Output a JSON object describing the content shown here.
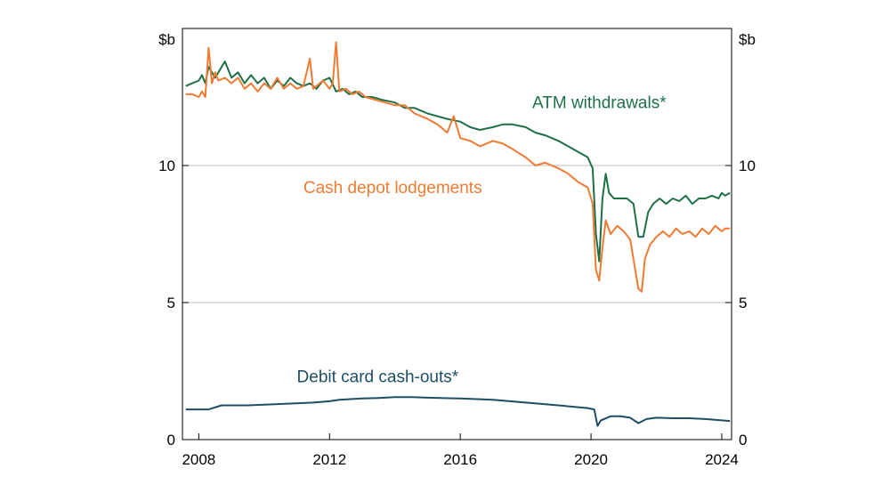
{
  "chart_data": {
    "type": "line",
    "title": "",
    "xlabel": "",
    "ylabel": "",
    "y_unit_left": "$b",
    "y_unit_right": "$b",
    "xlim": [
      2007.5,
      2024.3
    ],
    "ylim": [
      0,
      15
    ],
    "x_ticks": [
      2008,
      2012,
      2016,
      2020,
      2024
    ],
    "x_tick_labels": [
      "2008",
      "2012",
      "2016",
      "2020",
      "2024"
    ],
    "y_ticks": [
      0,
      5,
      10
    ],
    "y_tick_labels": [
      "0",
      "5",
      "10"
    ],
    "grid": "horizontal",
    "series": [
      {
        "name": "ATM withdrawals*",
        "color": "#1e7047",
        "points": [
          [
            2007.6,
            12.9
          ],
          [
            2007.8,
            13.0
          ],
          [
            2008.0,
            13.1
          ],
          [
            2008.1,
            13.3
          ],
          [
            2008.2,
            13.0
          ],
          [
            2008.3,
            13.6
          ],
          [
            2008.5,
            13.2
          ],
          [
            2008.6,
            13.4
          ],
          [
            2008.8,
            13.8
          ],
          [
            2009.0,
            13.2
          ],
          [
            2009.2,
            13.4
          ],
          [
            2009.4,
            13.0
          ],
          [
            2009.6,
            13.3
          ],
          [
            2009.8,
            13.0
          ],
          [
            2010.0,
            13.2
          ],
          [
            2010.2,
            12.8
          ],
          [
            2010.4,
            13.1
          ],
          [
            2010.6,
            12.9
          ],
          [
            2010.8,
            13.2
          ],
          [
            2011.0,
            13.0
          ],
          [
            2011.2,
            12.9
          ],
          [
            2011.4,
            13.0
          ],
          [
            2011.6,
            12.8
          ],
          [
            2011.8,
            13.1
          ],
          [
            2012.0,
            13.2
          ],
          [
            2012.2,
            12.7
          ],
          [
            2012.4,
            12.8
          ],
          [
            2012.6,
            12.6
          ],
          [
            2012.8,
            12.7
          ],
          [
            2013.0,
            12.5
          ],
          [
            2013.3,
            12.5
          ],
          [
            2013.6,
            12.4
          ],
          [
            2014.0,
            12.3
          ],
          [
            2014.3,
            12.1
          ],
          [
            2014.6,
            12.1
          ],
          [
            2015.0,
            11.9
          ],
          [
            2015.3,
            11.8
          ],
          [
            2015.6,
            11.7
          ],
          [
            2016.0,
            11.6
          ],
          [
            2016.3,
            11.4
          ],
          [
            2016.6,
            11.3
          ],
          [
            2017.0,
            11.4
          ],
          [
            2017.3,
            11.5
          ],
          [
            2017.6,
            11.5
          ],
          [
            2018.0,
            11.4
          ],
          [
            2018.3,
            11.2
          ],
          [
            2018.6,
            11.1
          ],
          [
            2019.0,
            10.9
          ],
          [
            2019.3,
            10.7
          ],
          [
            2019.6,
            10.5
          ],
          [
            2019.9,
            10.3
          ],
          [
            2020.05,
            9.9
          ],
          [
            2020.15,
            7.5
          ],
          [
            2020.25,
            6.5
          ],
          [
            2020.35,
            8.8
          ],
          [
            2020.45,
            9.7
          ],
          [
            2020.55,
            9.0
          ],
          [
            2020.7,
            8.8
          ],
          [
            2020.9,
            8.8
          ],
          [
            2021.1,
            8.8
          ],
          [
            2021.3,
            8.6
          ],
          [
            2021.45,
            7.4
          ],
          [
            2021.6,
            7.4
          ],
          [
            2021.75,
            8.3
          ],
          [
            2021.9,
            8.6
          ],
          [
            2022.1,
            8.8
          ],
          [
            2022.3,
            8.6
          ],
          [
            2022.5,
            8.8
          ],
          [
            2022.7,
            8.7
          ],
          [
            2022.9,
            8.9
          ],
          [
            2023.1,
            8.6
          ],
          [
            2023.3,
            8.8
          ],
          [
            2023.5,
            8.8
          ],
          [
            2023.7,
            8.9
          ],
          [
            2023.9,
            8.8
          ],
          [
            2024.0,
            9.0
          ],
          [
            2024.1,
            8.9
          ],
          [
            2024.25,
            9.0
          ]
        ],
        "label_pos": [
          2018.2,
          12.1
        ]
      },
      {
        "name": "Cash depot lodgements",
        "color": "#f07b32",
        "points": [
          [
            2007.6,
            12.6
          ],
          [
            2007.8,
            12.6
          ],
          [
            2008.0,
            12.5
          ],
          [
            2008.1,
            12.7
          ],
          [
            2008.2,
            12.5
          ],
          [
            2008.3,
            14.3
          ],
          [
            2008.4,
            13.0
          ],
          [
            2008.5,
            13.4
          ],
          [
            2008.6,
            13.1
          ],
          [
            2008.8,
            13.2
          ],
          [
            2009.0,
            13.0
          ],
          [
            2009.2,
            13.2
          ],
          [
            2009.4,
            12.8
          ],
          [
            2009.6,
            13.0
          ],
          [
            2009.8,
            12.7
          ],
          [
            2010.0,
            13.0
          ],
          [
            2010.2,
            12.8
          ],
          [
            2010.4,
            13.2
          ],
          [
            2010.6,
            12.8
          ],
          [
            2010.8,
            13.0
          ],
          [
            2011.0,
            12.8
          ],
          [
            2011.2,
            12.9
          ],
          [
            2011.4,
            13.9
          ],
          [
            2011.5,
            12.8
          ],
          [
            2011.6,
            12.9
          ],
          [
            2011.8,
            13.1
          ],
          [
            2012.0,
            12.8
          ],
          [
            2012.1,
            13.0
          ],
          [
            2012.2,
            14.5
          ],
          [
            2012.3,
            12.7
          ],
          [
            2012.5,
            12.8
          ],
          [
            2012.7,
            12.6
          ],
          [
            2012.9,
            12.7
          ],
          [
            2013.1,
            12.5
          ],
          [
            2013.4,
            12.4
          ],
          [
            2013.7,
            12.3
          ],
          [
            2014.0,
            12.2
          ],
          [
            2014.3,
            12.2
          ],
          [
            2014.6,
            11.9
          ],
          [
            2015.0,
            11.7
          ],
          [
            2015.3,
            11.5
          ],
          [
            2015.6,
            11.2
          ],
          [
            2015.8,
            11.8
          ],
          [
            2016.0,
            11.0
          ],
          [
            2016.3,
            10.9
          ],
          [
            2016.6,
            10.7
          ],
          [
            2017.0,
            10.9
          ],
          [
            2017.3,
            10.8
          ],
          [
            2017.6,
            10.6
          ],
          [
            2018.0,
            10.3
          ],
          [
            2018.3,
            10.0
          ],
          [
            2018.6,
            10.1
          ],
          [
            2019.0,
            9.9
          ],
          [
            2019.3,
            9.7
          ],
          [
            2019.6,
            9.4
          ],
          [
            2019.9,
            9.2
          ],
          [
            2020.05,
            8.6
          ],
          [
            2020.15,
            6.2
          ],
          [
            2020.25,
            5.8
          ],
          [
            2020.35,
            7.0
          ],
          [
            2020.45,
            8.0
          ],
          [
            2020.6,
            7.5
          ],
          [
            2020.8,
            7.8
          ],
          [
            2021.0,
            7.6
          ],
          [
            2021.2,
            7.3
          ],
          [
            2021.35,
            6.2
          ],
          [
            2021.45,
            5.5
          ],
          [
            2021.55,
            5.4
          ],
          [
            2021.65,
            6.6
          ],
          [
            2021.8,
            7.1
          ],
          [
            2022.0,
            7.4
          ],
          [
            2022.2,
            7.6
          ],
          [
            2022.4,
            7.4
          ],
          [
            2022.6,
            7.7
          ],
          [
            2022.8,
            7.5
          ],
          [
            2023.0,
            7.6
          ],
          [
            2023.2,
            7.4
          ],
          [
            2023.4,
            7.7
          ],
          [
            2023.6,
            7.5
          ],
          [
            2023.8,
            7.8
          ],
          [
            2024.0,
            7.6
          ],
          [
            2024.1,
            7.7
          ],
          [
            2024.25,
            7.7
          ]
        ],
        "label_pos": [
          2011.2,
          9.0
        ]
      },
      {
        "name": "Debit card cash-outs*",
        "color": "#1d4e63",
        "points": [
          [
            2007.6,
            1.1
          ],
          [
            2008.3,
            1.1
          ],
          [
            2008.7,
            1.25
          ],
          [
            2009.5,
            1.25
          ],
          [
            2010.5,
            1.3
          ],
          [
            2011.5,
            1.35
          ],
          [
            2012.0,
            1.4
          ],
          [
            2012.3,
            1.45
          ],
          [
            2013.0,
            1.5
          ],
          [
            2013.5,
            1.52
          ],
          [
            2014.0,
            1.55
          ],
          [
            2014.5,
            1.55
          ],
          [
            2015.0,
            1.53
          ],
          [
            2016.0,
            1.5
          ],
          [
            2017.0,
            1.45
          ],
          [
            2018.0,
            1.35
          ],
          [
            2019.0,
            1.25
          ],
          [
            2019.9,
            1.15
          ],
          [
            2020.1,
            1.1
          ],
          [
            2020.2,
            0.5
          ],
          [
            2020.3,
            0.7
          ],
          [
            2020.6,
            0.85
          ],
          [
            2020.9,
            0.85
          ],
          [
            2021.2,
            0.8
          ],
          [
            2021.45,
            0.6
          ],
          [
            2021.7,
            0.75
          ],
          [
            2022.0,
            0.8
          ],
          [
            2022.5,
            0.78
          ],
          [
            2023.0,
            0.78
          ],
          [
            2023.5,
            0.75
          ],
          [
            2024.0,
            0.7
          ],
          [
            2024.25,
            0.68
          ]
        ],
        "label_pos": [
          2011.0,
          2.1
        ]
      }
    ]
  }
}
